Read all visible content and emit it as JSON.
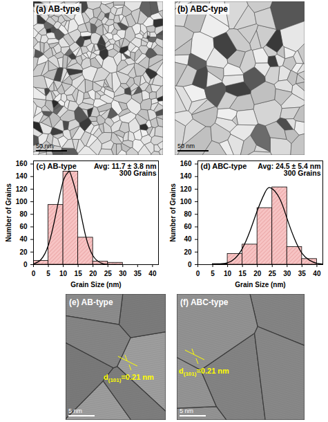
{
  "chart_data": [
    {
      "type": "histogram",
      "title": "(c) AB-type",
      "annotations": [
        "Avg: 11.7 ± 3.8 nm",
        "300 Grains"
      ],
      "x_label": "Grain Size (nm)",
      "y_label": "Number of Grains",
      "bins": [
        0,
        5,
        10,
        15,
        20,
        25,
        30,
        35,
        40
      ],
      "values": [
        6,
        95,
        148,
        43,
        5,
        3,
        0,
        0
      ],
      "color": "#f7c4c4",
      "fit_curve": {
        "color": "#000000",
        "x": [
          0,
          2.5,
          5,
          7.5,
          10,
          11.7,
          12.5,
          15,
          17.5,
          20,
          22.5,
          25,
          27.5
        ],
        "values": [
          1,
          8,
          31,
          80,
          133,
          147,
          144,
          101,
          46,
          14,
          3,
          0,
          0
        ]
      },
      "xlim": [
        0,
        42
      ],
      "xticks": [
        0,
        5,
        10,
        15,
        20,
        25,
        30,
        35,
        40
      ],
      "ylim": [
        0,
        165
      ],
      "yticks": [
        0,
        20,
        40,
        60,
        80,
        100,
        120,
        140,
        160
      ]
    },
    {
      "type": "histogram",
      "title": "(d) ABC-type",
      "annotations": [
        "Avg: 24.5 ± 5.4 nm",
        "300 Grains"
      ],
      "x_label": "Grain Size (nm)",
      "y_label": "Number of Grains",
      "bins": [
        0,
        5,
        10,
        15,
        20,
        25,
        30,
        35,
        40
      ],
      "values": [
        0,
        1,
        17,
        32,
        90,
        123,
        28,
        9
      ],
      "color": "#f7c4c4",
      "fit_curve": {
        "color": "#000000",
        "x": [
          5,
          7.5,
          10,
          12.5,
          15,
          17.5,
          20,
          22.5,
          24.5,
          27.5,
          30,
          32.5,
          35,
          37.5,
          40,
          42
        ],
        "values": [
          0,
          1,
          3,
          10,
          26,
          53,
          86,
          114,
          122,
          105,
          73,
          41,
          18,
          7,
          2,
          1
        ]
      },
      "xlim": [
        0,
        42
      ],
      "xticks": [
        0,
        5,
        10,
        15,
        20,
        25,
        30,
        35,
        40
      ],
      "ylim": [
        0,
        165
      ],
      "yticks": [
        0,
        20,
        40,
        60,
        80,
        100,
        120,
        140,
        160
      ]
    }
  ],
  "images": [
    {
      "label": "(a) AB-type",
      "scale_bar": "50 nm"
    },
    {
      "label": "(b) ABC-type",
      "scale_bar": "50 nm"
    },
    {
      "label": "(e) AB-type",
      "scale_bar": "5 nm",
      "lattice_spacing": {
        "symbol": "d",
        "subscript": "(101)",
        "text": "=0.21 nm",
        "color": "#ffff00"
      }
    },
    {
      "label": "(f) ABC-type",
      "scale_bar": "5 nm",
      "lattice_spacing": {
        "symbol": "d",
        "subscript": "(101)",
        "text": "=0.21 nm",
        "color": "#ffff00"
      }
    }
  ]
}
